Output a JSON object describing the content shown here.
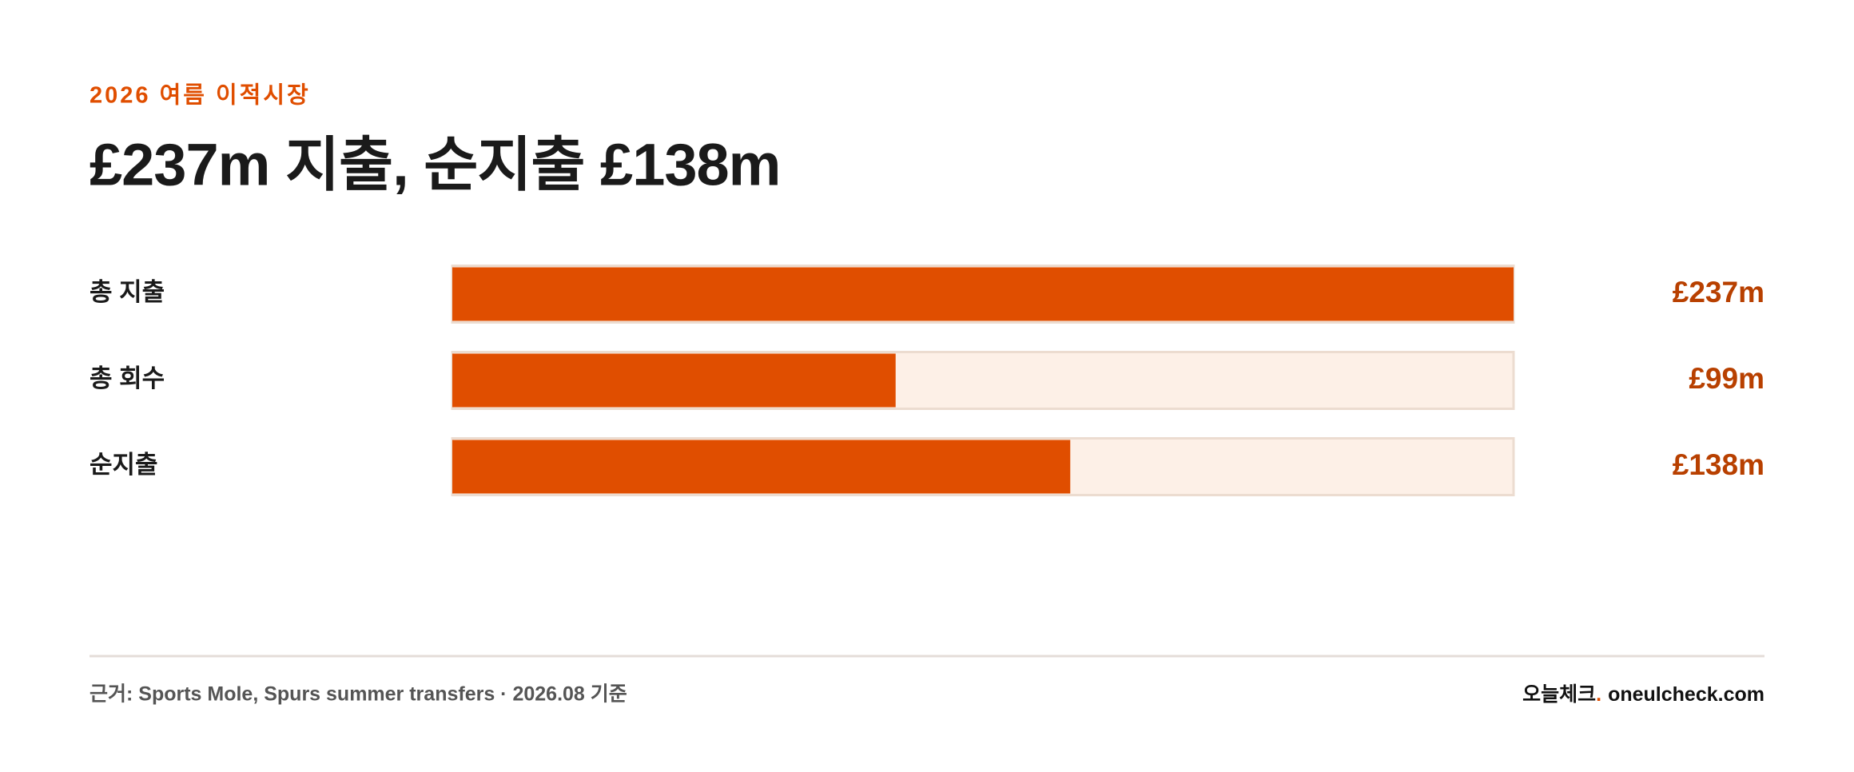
{
  "chart_data": {
    "type": "hbar",
    "kicker": "2026 여름 이적시장",
    "title": "£237m 지출, 순지출 £138m",
    "categories": [
      "총 지출",
      "총 회수",
      "순지출"
    ],
    "values": [
      237,
      99,
      138
    ],
    "value_labels": [
      "£237m",
      "£99m",
      "£138m"
    ],
    "xlim": [
      0,
      237
    ],
    "color": "#e04e00",
    "track_color": "#fdf0e7",
    "source": "근거: Sports Mole, Spurs summer transfers · 2026.08 기준",
    "brand": {
      "name": "오늘체크",
      "dot": ".",
      "url": "oneulcheck.com"
    }
  }
}
